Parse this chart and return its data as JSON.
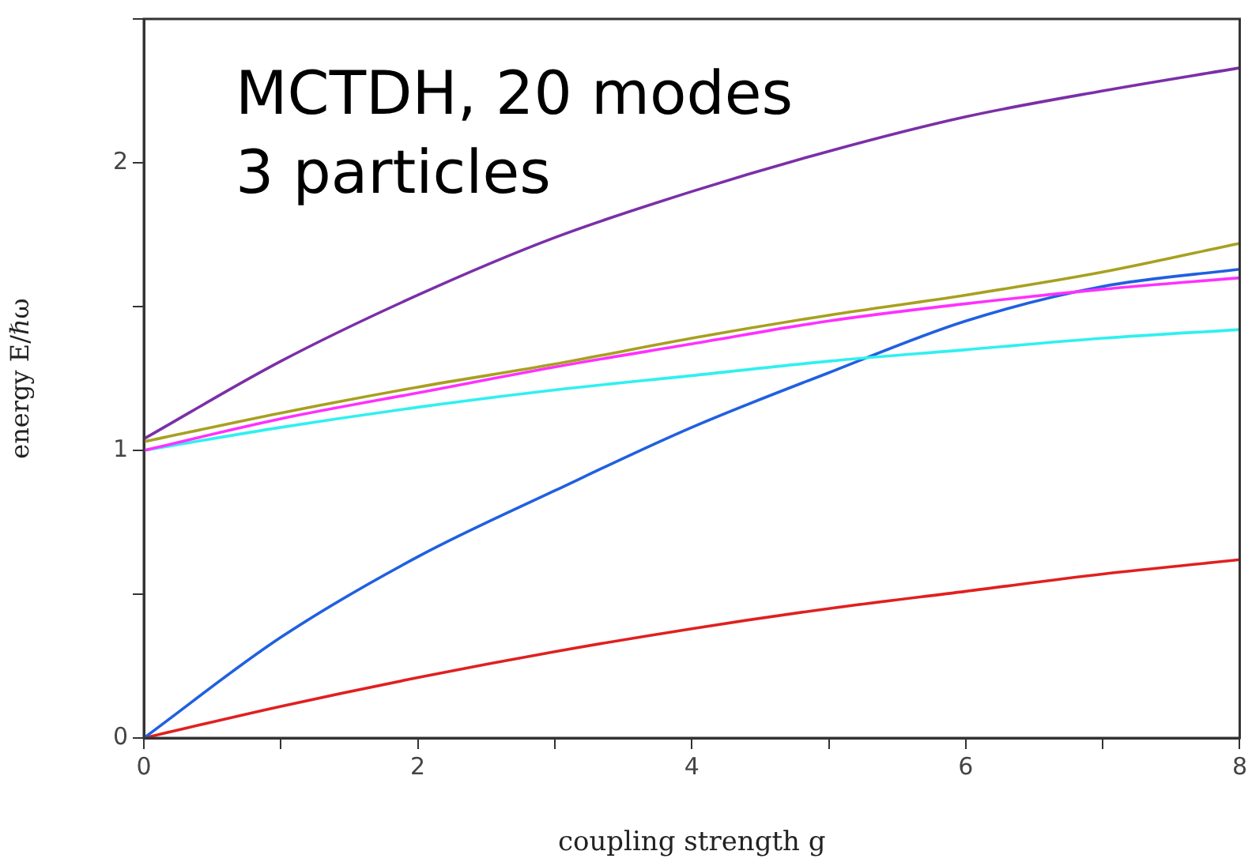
{
  "chart_data": {
    "type": "line",
    "xlabel": "coupling strength g",
    "ylabel": "energy E/ℏω",
    "annotations": [
      "MCTDH, 20 modes",
      "3 particles"
    ],
    "x": [
      0,
      1,
      2,
      3,
      4,
      5,
      6,
      7,
      8
    ],
    "series": [
      {
        "color": "#7b2fa8",
        "values": [
          1.04,
          1.31,
          1.54,
          1.74,
          1.9,
          2.04,
          2.16,
          2.25,
          2.33
        ]
      },
      {
        "color": "#a8a020",
        "values": [
          1.03,
          1.13,
          1.22,
          1.3,
          1.39,
          1.47,
          1.54,
          1.62,
          1.72
        ]
      },
      {
        "color": "#ff30ff",
        "values": [
          1.0,
          1.11,
          1.2,
          1.29,
          1.37,
          1.45,
          1.51,
          1.56,
          1.6
        ]
      },
      {
        "color": "#30f0f0",
        "values": [
          1.0,
          1.08,
          1.15,
          1.21,
          1.26,
          1.31,
          1.35,
          1.39,
          1.42
        ]
      },
      {
        "color": "#2060e0",
        "values": [
          0,
          0.35,
          0.63,
          0.86,
          1.08,
          1.27,
          1.45,
          1.57,
          1.63
        ]
      },
      {
        "color": "#e02020",
        "values": [
          0,
          0.11,
          0.21,
          0.3,
          0.38,
          0.45,
          0.51,
          0.57,
          0.62
        ]
      }
    ],
    "xlim": [
      0,
      8
    ],
    "xticks": [
      0,
      {
        "value": 1,
        "label": null
      },
      2,
      {
        "value": 3,
        "label": null
      },
      4,
      {
        "value": 5,
        "label": null
      },
      6,
      {
        "value": 7,
        "label": null
      },
      8
    ],
    "ylim": [
      0,
      2.5
    ],
    "yticks": [
      0,
      {
        "value": 0.5,
        "label": null
      },
      1,
      {
        "value": 1.5,
        "label": null
      },
      2,
      {
        "value": 2.5,
        "label": null
      }
    ],
    "grid": false,
    "legend": false,
    "marker": "none",
    "line_style": "solid"
  }
}
